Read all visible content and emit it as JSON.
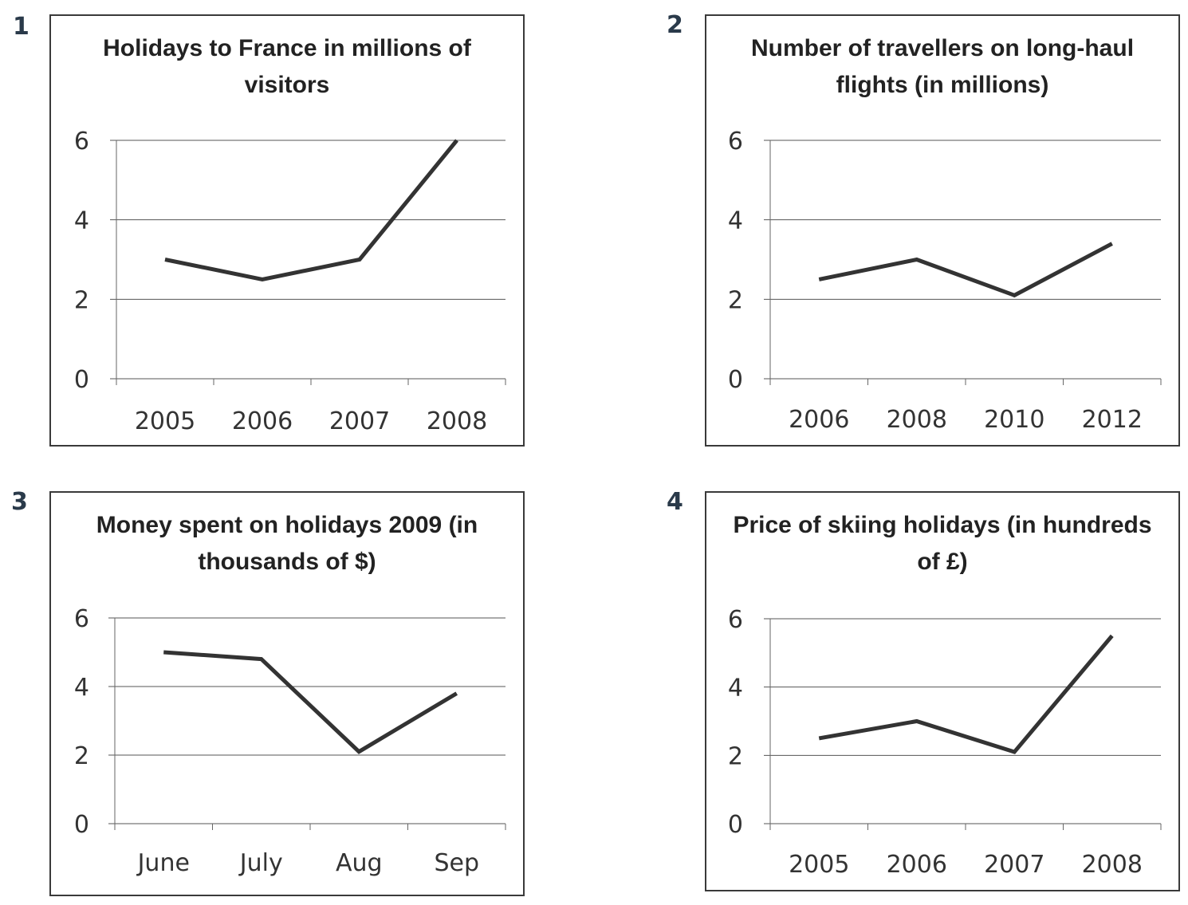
{
  "chart_data": [
    {
      "number": "1",
      "type": "line",
      "title": "Holidays to France in millions of visitors",
      "categories": [
        "2005",
        "2006",
        "2007",
        "2008"
      ],
      "values": [
        3,
        2.5,
        3,
        6
      ],
      "yticks": [
        "0",
        "2",
        "4",
        "6"
      ],
      "ylim": [
        0,
        6
      ],
      "grid": true,
      "line_color": "#333333"
    },
    {
      "number": "2",
      "type": "line",
      "title": "Number of travellers on long-haul flights (in millions)",
      "categories": [
        "2006",
        "2008",
        "2010",
        "2012"
      ],
      "values": [
        2.5,
        3,
        2.1,
        3.4
      ],
      "yticks": [
        "0",
        "2",
        "4",
        "6"
      ],
      "ylim": [
        0,
        6
      ],
      "grid": true,
      "line_color": "#333333"
    },
    {
      "number": "3",
      "type": "line",
      "title": "Money spent on holidays 2009 (in thousands of $)",
      "categories": [
        "June",
        "July",
        "Aug",
        "Sep"
      ],
      "values": [
        5,
        4.8,
        2.1,
        3.8
      ],
      "yticks": [
        "0",
        "2",
        "4",
        "6"
      ],
      "ylim": [
        0,
        6
      ],
      "grid": true,
      "line_color": "#333333"
    },
    {
      "number": "4",
      "type": "line",
      "title": "Price of skiing holidays (in hundreds of £)",
      "categories": [
        "2005",
        "2006",
        "2007",
        "2008"
      ],
      "values": [
        2.5,
        3,
        2.1,
        5.5
      ],
      "yticks": [
        "0",
        "2",
        "4",
        "6"
      ],
      "ylim": [
        0,
        6
      ],
      "grid": true,
      "line_color": "#333333"
    }
  ]
}
